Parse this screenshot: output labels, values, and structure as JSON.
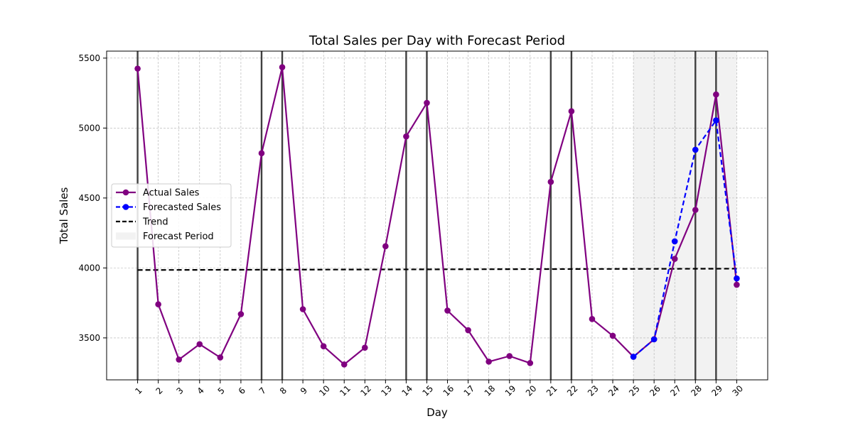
{
  "chart_data": {
    "type": "line",
    "title": "Total Sales per Day with Forecast Period",
    "xlabel": "Day",
    "ylabel": "Total Sales",
    "x": [
      1,
      2,
      3,
      4,
      5,
      6,
      7,
      8,
      9,
      10,
      11,
      12,
      13,
      14,
      15,
      16,
      17,
      18,
      19,
      20,
      21,
      22,
      23,
      24,
      25,
      26,
      27,
      28,
      29,
      30
    ],
    "xlim": [
      -0.5,
      31.5
    ],
    "ylim": [
      3200,
      5550
    ],
    "yticks": [
      3500,
      4000,
      4500,
      5000,
      5500
    ],
    "grid": true,
    "legend_position": "center-left",
    "series": [
      {
        "name": "Actual Sales",
        "color": "#800080",
        "style": "solid",
        "marker": "circle",
        "x": [
          1,
          2,
          3,
          4,
          5,
          6,
          7,
          8,
          9,
          10,
          11,
          12,
          13,
          14,
          15,
          16,
          17,
          18,
          19,
          20,
          21,
          22,
          23,
          24,
          25,
          26,
          27,
          28,
          29,
          30
        ],
        "values": [
          5425,
          3740,
          3345,
          3455,
          3360,
          3670,
          4820,
          5435,
          3705,
          3440,
          3310,
          3430,
          4155,
          4940,
          5180,
          3695,
          3555,
          3330,
          3370,
          3320,
          4615,
          5120,
          3635,
          3515,
          3365,
          3490,
          4065,
          4415,
          5240,
          3880
        ]
      },
      {
        "name": "Forecasted Sales",
        "color": "#0000ff",
        "style": "dashed",
        "marker": "circle",
        "x": [
          25,
          26,
          27,
          28,
          29,
          30
        ],
        "values": [
          3365,
          3490,
          4190,
          4845,
          5055,
          3925
        ]
      },
      {
        "name": "Trend",
        "color": "#000000",
        "style": "dashed",
        "marker": "none",
        "x": [
          1,
          30
        ],
        "values": [
          3985,
          3995
        ]
      }
    ],
    "forecast_period": {
      "name": "Forecast Period",
      "x_start": 25,
      "x_end": 30,
      "color": "#f2f2f2"
    },
    "vertical_lines": [
      1,
      7,
      8,
      14,
      15,
      21,
      22,
      28,
      29
    ]
  }
}
